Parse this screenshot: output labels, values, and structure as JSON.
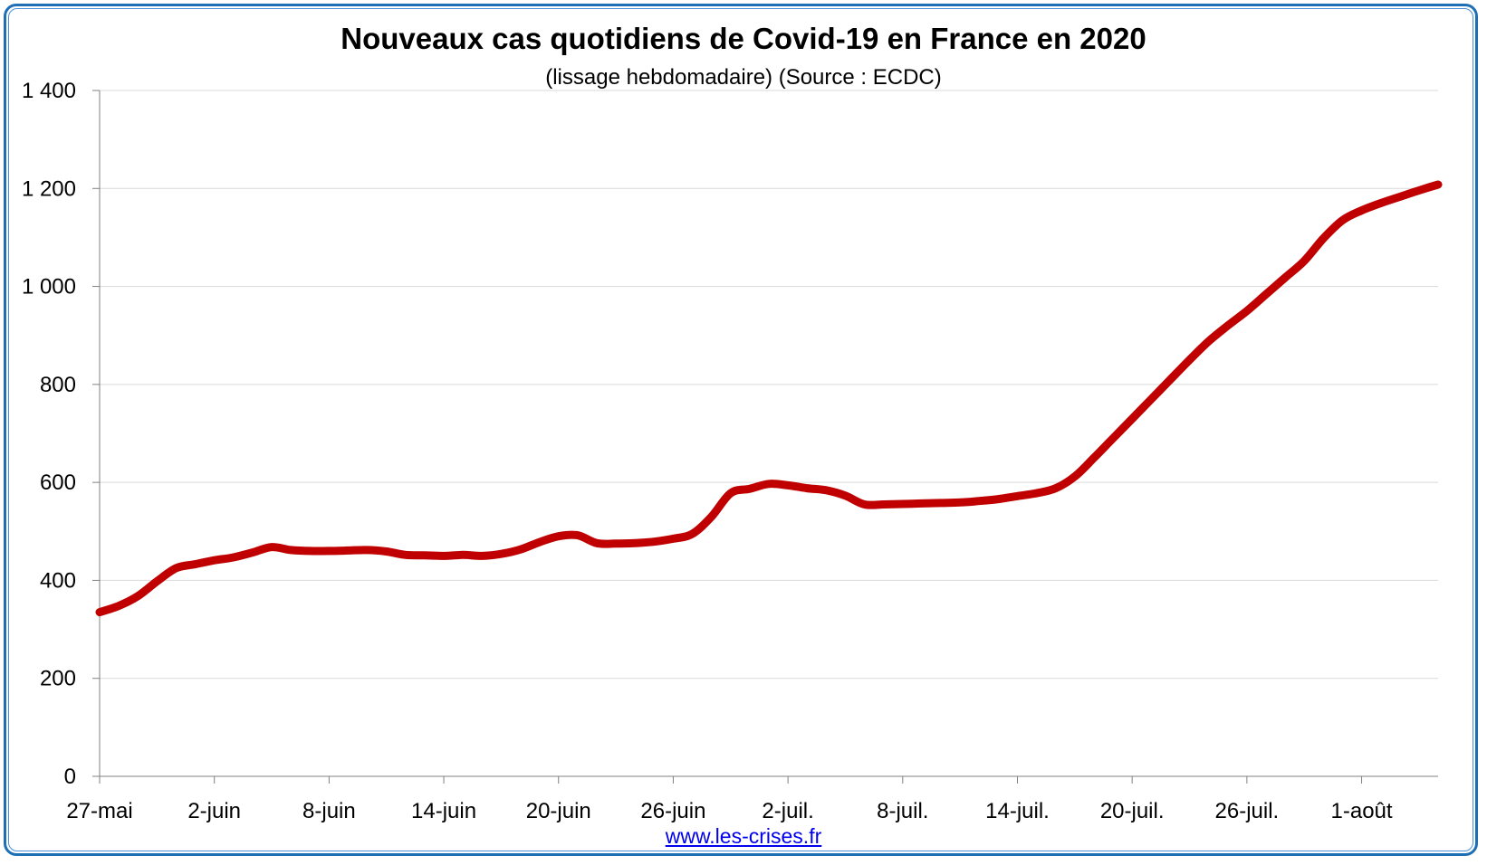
{
  "chart_data": {
    "type": "line",
    "title": "Nouveaux cas quotidiens de Covid-19 en France en 2020",
    "subtitle": "(lissage hebdomadaire) (Source : ECDC)",
    "xlabel": "",
    "ylabel": "",
    "ylim": [
      0,
      1400
    ],
    "yticks": [
      0,
      200,
      400,
      600,
      800,
      1000,
      1200,
      1400
    ],
    "ytick_labels": [
      "0",
      "200",
      "400",
      "600",
      "800",
      "1 000",
      "1 200",
      "1 400"
    ],
    "xlim": [
      "2020-05-27",
      "2020-08-05"
    ],
    "xticks": [
      "2020-05-27",
      "2020-06-02",
      "2020-06-08",
      "2020-06-14",
      "2020-06-20",
      "2020-06-26",
      "2020-07-02",
      "2020-07-08",
      "2020-07-14",
      "2020-07-20",
      "2020-07-26",
      "2020-08-01"
    ],
    "xtick_labels": [
      "27-mai",
      "2-juin",
      "8-juin",
      "14-juin",
      "20-juin",
      "26-juin",
      "2-juil.",
      "8-juil.",
      "14-juil.",
      "20-juil.",
      "26-juil.",
      "1-août"
    ],
    "grid": true,
    "series": [
      {
        "color": "#c00000",
        "x": [
          "2020-05-27",
          "2020-05-28",
          "2020-05-29",
          "2020-05-30",
          "2020-05-31",
          "2020-06-01",
          "2020-06-02",
          "2020-06-03",
          "2020-06-04",
          "2020-06-05",
          "2020-06-06",
          "2020-06-07",
          "2020-06-08",
          "2020-06-09",
          "2020-06-10",
          "2020-06-11",
          "2020-06-12",
          "2020-06-13",
          "2020-06-14",
          "2020-06-15",
          "2020-06-16",
          "2020-06-17",
          "2020-06-18",
          "2020-06-19",
          "2020-06-20",
          "2020-06-21",
          "2020-06-22",
          "2020-06-23",
          "2020-06-24",
          "2020-06-25",
          "2020-06-26",
          "2020-06-27",
          "2020-06-28",
          "2020-06-29",
          "2020-06-30",
          "2020-07-01",
          "2020-07-02",
          "2020-07-03",
          "2020-07-04",
          "2020-07-05",
          "2020-07-06",
          "2020-07-07",
          "2020-07-08",
          "2020-07-09",
          "2020-07-10",
          "2020-07-11",
          "2020-07-12",
          "2020-07-13",
          "2020-07-14",
          "2020-07-15",
          "2020-07-16",
          "2020-07-17",
          "2020-07-18",
          "2020-07-19",
          "2020-07-20",
          "2020-07-21",
          "2020-07-22",
          "2020-07-23",
          "2020-07-24",
          "2020-07-25",
          "2020-07-26",
          "2020-07-27",
          "2020-07-28",
          "2020-07-29",
          "2020-07-30",
          "2020-07-31",
          "2020-08-01",
          "2020-08-02",
          "2020-08-03",
          "2020-08-04",
          "2020-08-05"
        ],
        "values": [
          335,
          348,
          368,
          398,
          425,
          433,
          441,
          447,
          457,
          468,
          462,
          460,
          460,
          461,
          462,
          459,
          452,
          451,
          450,
          452,
          450,
          454,
          463,
          478,
          490,
          492,
          476,
          475,
          476,
          479,
          485,
          495,
          530,
          578,
          587,
          597,
          594,
          588,
          584,
          573,
          555,
          555,
          556,
          557,
          558,
          559,
          562,
          566,
          572,
          578,
          588,
          612,
          650,
          690,
          730,
          770,
          810,
          850,
          888,
          920,
          950,
          984,
          1018,
          1052,
          1098,
          1135,
          1155,
          1170,
          1183,
          1196,
          1208
        ]
      }
    ]
  },
  "footer": {
    "source_link": "www.les-crises.fr"
  }
}
